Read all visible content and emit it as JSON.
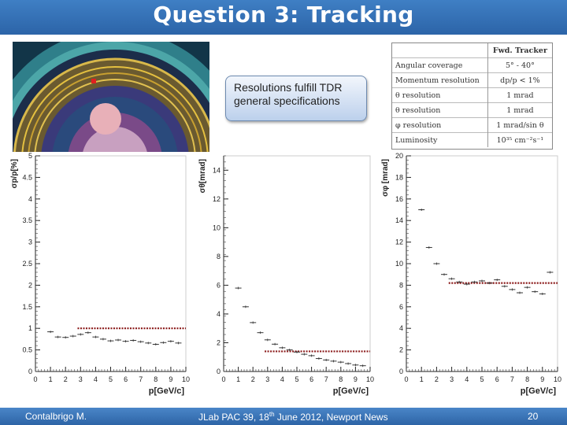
{
  "slide": {
    "title": "Question 3: Tracking",
    "callout": "Resolutions fulfill TDR general specifications",
    "footer": {
      "author": "Contalbrigo M.",
      "event_prefix": "JLab PAC 39, 18",
      "event_sup": "th",
      "event_suffix": " June 2012, Newport News",
      "page": "20"
    }
  },
  "specs_table": {
    "header": [
      "",
      "Fwd. Tracker"
    ],
    "rows": [
      [
        "Angular coverage",
        "5° - 40°"
      ],
      [
        "Momentum resolution",
        "dp/p < 1%"
      ],
      [
        "θ resolution",
        "1 mrad"
      ],
      [
        "θ resolution",
        "1 mrad"
      ],
      [
        "φ resolution",
        "1 mrad/sin θ"
      ],
      [
        "Luminosity",
        "10³⁵ cm⁻²s⁻¹"
      ]
    ]
  },
  "colors": {
    "header_bar": "#2f6bb0",
    "threshold_line": "#8b1a1a",
    "data": "#333333"
  },
  "chart_data": [
    {
      "type": "scatter",
      "title": "",
      "xlabel": "p[GeV/c]",
      "ylabel": "σp/p[%]",
      "xlim": [
        0,
        10
      ],
      "ylim": [
        0,
        5
      ],
      "xticks": [
        "0",
        "1",
        "2",
        "3",
        "4",
        "5",
        "6",
        "7",
        "8",
        "9",
        "10"
      ],
      "yticks": [
        "0",
        "0.5",
        "1",
        "1.5",
        "2",
        "2.5",
        "3",
        "3.5",
        "4",
        "4.5",
        "5"
      ],
      "grid": false,
      "series": [
        {
          "values": [
            [
              1.0,
              0.92
            ],
            [
              1.5,
              0.8
            ],
            [
              2.0,
              0.79
            ],
            [
              2.5,
              0.82
            ],
            [
              3.0,
              0.86
            ],
            [
              3.5,
              0.9
            ],
            [
              4.0,
              0.8
            ],
            [
              4.5,
              0.75
            ],
            [
              5.0,
              0.71
            ],
            [
              5.5,
              0.73
            ],
            [
              6.0,
              0.7
            ],
            [
              6.5,
              0.72
            ],
            [
              7.0,
              0.69
            ],
            [
              7.5,
              0.66
            ],
            [
              8.0,
              0.63
            ],
            [
              8.5,
              0.67
            ],
            [
              9.0,
              0.7
            ],
            [
              9.5,
              0.66
            ]
          ]
        }
      ],
      "threshold": {
        "y": 1.0,
        "from": 2.8,
        "to": 10
      }
    },
    {
      "type": "scatter",
      "title": "",
      "xlabel": "p[GeV/c]",
      "ylabel": "σθ[mrad]",
      "xlim": [
        0,
        10
      ],
      "ylim": [
        0,
        15
      ],
      "xticks": [
        "0",
        "1",
        "2",
        "3",
        "4",
        "5",
        "6",
        "7",
        "8",
        "9",
        "10"
      ],
      "yticks": [
        "0",
        "2",
        "4",
        "6",
        "8",
        "10",
        "12",
        "14"
      ],
      "grid": false,
      "series": [
        {
          "values": [
            [
              1.0,
              5.8
            ],
            [
              1.5,
              4.5
            ],
            [
              2.0,
              3.4
            ],
            [
              2.5,
              2.7
            ],
            [
              3.0,
              2.2
            ],
            [
              3.5,
              1.9
            ],
            [
              4.0,
              1.65
            ],
            [
              4.5,
              1.5
            ],
            [
              5.0,
              1.35
            ],
            [
              5.5,
              1.2
            ],
            [
              6.0,
              1.1
            ],
            [
              6.5,
              0.9
            ],
            [
              7.0,
              0.8
            ],
            [
              7.5,
              0.72
            ],
            [
              8.0,
              0.65
            ],
            [
              8.5,
              0.55
            ],
            [
              9.0,
              0.45
            ],
            [
              9.5,
              0.4
            ]
          ]
        }
      ],
      "threshold": {
        "y": 1.4,
        "from": 2.8,
        "to": 10
      }
    },
    {
      "type": "scatter",
      "title": "",
      "xlabel": "p[GeV/c]",
      "ylabel": "σφ [mrad]",
      "xlim": [
        0,
        10
      ],
      "ylim": [
        0,
        20
      ],
      "xticks": [
        "0",
        "1",
        "2",
        "3",
        "4",
        "5",
        "6",
        "7",
        "8",
        "9",
        "10"
      ],
      "yticks": [
        "0",
        "2",
        "4",
        "6",
        "8",
        "10",
        "12",
        "14",
        "16",
        "18",
        "20"
      ],
      "grid": false,
      "series": [
        {
          "values": [
            [
              1.0,
              15.0
            ],
            [
              1.5,
              11.5
            ],
            [
              2.0,
              10.0
            ],
            [
              2.5,
              9.0
            ],
            [
              3.0,
              8.6
            ],
            [
              3.5,
              8.3
            ],
            [
              4.0,
              8.1
            ],
            [
              4.5,
              8.3
            ],
            [
              5.0,
              8.4
            ],
            [
              5.5,
              8.2
            ],
            [
              6.0,
              8.5
            ],
            [
              6.5,
              7.9
            ],
            [
              7.0,
              7.6
            ],
            [
              7.5,
              7.3
            ],
            [
              8.0,
              7.8
            ],
            [
              8.5,
              7.4
            ],
            [
              9.0,
              7.2
            ],
            [
              9.5,
              9.2
            ]
          ]
        }
      ],
      "threshold": {
        "y": 8.2,
        "from": 2.8,
        "to": 10
      }
    }
  ]
}
